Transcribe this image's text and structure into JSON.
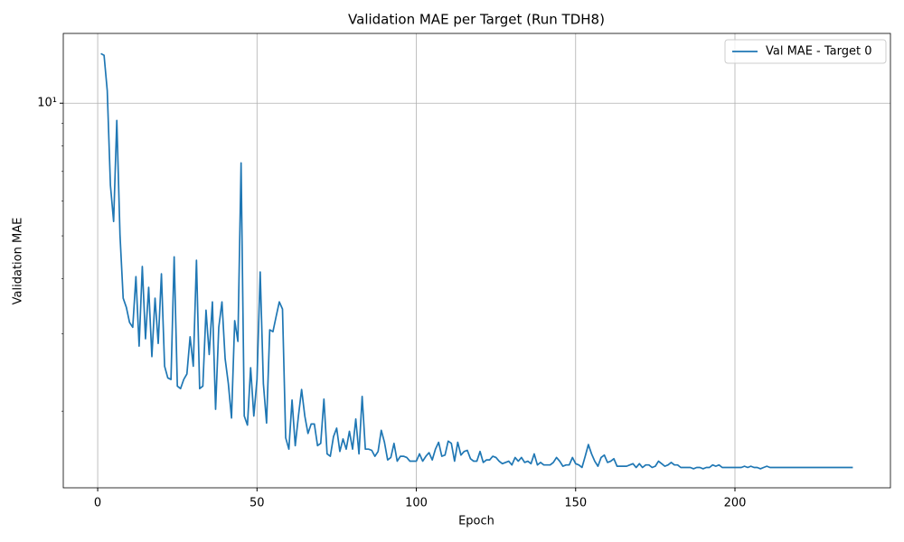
{
  "chart_data": {
    "type": "line",
    "title": "Validation MAE per Target (Run TDH8)",
    "x_label": "Epoch",
    "y_label": "Validation MAE",
    "x": [
      1,
      2,
      3,
      4,
      5,
      6,
      7,
      8,
      9,
      10,
      11,
      12,
      13,
      14,
      15,
      16,
      17,
      18,
      19,
      20,
      21,
      22,
      23,
      24,
      25,
      26,
      27,
      28,
      29,
      30,
      31,
      32,
      33,
      34,
      35,
      36,
      37,
      38,
      39,
      40,
      41,
      42,
      43,
      44,
      45,
      46,
      47,
      48,
      49,
      50,
      51,
      52,
      53,
      54,
      55,
      56,
      57,
      58,
      59,
      60,
      61,
      62,
      63,
      64,
      65,
      66,
      67,
      68,
      69,
      70,
      71,
      72,
      73,
      74,
      75,
      76,
      77,
      78,
      79,
      80,
      81,
      82,
      83,
      84,
      85,
      86,
      87,
      88,
      89,
      90,
      91,
      92,
      93,
      94,
      95,
      96,
      97,
      98,
      99,
      100,
      101,
      102,
      103,
      104,
      105,
      106,
      107,
      108,
      109,
      110,
      111,
      112,
      113,
      114,
      115,
      116,
      117,
      118,
      119,
      120,
      121,
      122,
      123,
      124,
      125,
      126,
      127,
      128,
      129,
      130,
      131,
      132,
      133,
      134,
      135,
      136,
      137,
      138,
      139,
      140,
      141,
      142,
      143,
      144,
      145,
      146,
      147,
      148,
      149,
      150,
      151,
      152,
      153,
      154,
      155,
      156,
      157,
      158,
      159,
      160,
      161,
      162,
      163,
      164,
      165,
      166,
      167,
      168,
      169,
      170,
      171,
      172,
      173,
      174,
      175,
      176,
      177,
      178,
      179,
      180,
      181,
      182,
      183,
      184,
      185,
      186,
      187,
      188,
      189,
      190,
      191,
      192,
      193,
      194,
      195,
      196,
      197,
      198,
      199,
      200,
      201,
      202,
      203,
      204,
      205,
      206,
      207,
      208,
      209,
      210,
      211,
      212,
      213,
      214,
      215,
      216,
      217,
      218,
      219,
      220,
      221,
      222,
      223,
      224,
      225,
      226,
      227,
      228,
      229,
      230,
      231,
      232,
      233,
      234,
      235,
      236,
      237
    ],
    "series": [
      {
        "name": "Val MAE - Target 0",
        "color": "#1f77b4",
        "values": [
          12.96,
          12.84,
          10.68,
          6.51,
          5.39,
          9.14,
          5.02,
          3.61,
          3.44,
          3.18,
          3.1,
          4.04,
          2.81,
          4.26,
          2.92,
          3.82,
          2.66,
          3.61,
          2.85,
          4.1,
          2.53,
          2.38,
          2.36,
          4.48,
          2.28,
          2.25,
          2.36,
          2.43,
          2.95,
          2.53,
          4.4,
          2.25,
          2.28,
          3.39,
          2.69,
          3.54,
          2.02,
          3.1,
          3.54,
          2.63,
          2.31,
          1.93,
          3.21,
          2.88,
          7.32,
          1.95,
          1.86,
          2.51,
          1.95,
          2.36,
          4.14,
          2.31,
          1.88,
          3.06,
          3.03,
          3.28,
          3.54,
          3.41,
          1.74,
          1.64,
          2.12,
          1.67,
          1.95,
          2.24,
          1.95,
          1.78,
          1.87,
          1.87,
          1.67,
          1.69,
          2.13,
          1.6,
          1.58,
          1.75,
          1.83,
          1.62,
          1.73,
          1.64,
          1.8,
          1.64,
          1.92,
          1.6,
          2.16,
          1.64,
          1.64,
          1.63,
          1.58,
          1.62,
          1.81,
          1.7,
          1.55,
          1.57,
          1.69,
          1.54,
          1.58,
          1.58,
          1.57,
          1.54,
          1.54,
          1.54,
          1.6,
          1.54,
          1.58,
          1.61,
          1.55,
          1.64,
          1.7,
          1.58,
          1.59,
          1.71,
          1.69,
          1.54,
          1.7,
          1.59,
          1.62,
          1.63,
          1.56,
          1.54,
          1.54,
          1.62,
          1.53,
          1.55,
          1.55,
          1.58,
          1.57,
          1.54,
          1.52,
          1.53,
          1.54,
          1.51,
          1.57,
          1.54,
          1.57,
          1.53,
          1.54,
          1.52,
          1.6,
          1.51,
          1.53,
          1.51,
          1.51,
          1.51,
          1.53,
          1.57,
          1.54,
          1.5,
          1.51,
          1.51,
          1.57,
          1.52,
          1.51,
          1.49,
          1.58,
          1.68,
          1.6,
          1.54,
          1.5,
          1.57,
          1.59,
          1.53,
          1.54,
          1.56,
          1.5,
          1.5,
          1.5,
          1.5,
          1.51,
          1.52,
          1.49,
          1.52,
          1.49,
          1.51,
          1.51,
          1.49,
          1.5,
          1.54,
          1.52,
          1.5,
          1.51,
          1.53,
          1.51,
          1.51,
          1.49,
          1.49,
          1.49,
          1.49,
          1.48,
          1.49,
          1.49,
          1.48,
          1.49,
          1.49,
          1.51,
          1.5,
          1.51,
          1.49,
          1.49,
          1.49,
          1.49,
          1.49,
          1.49,
          1.49,
          1.5,
          1.49,
          1.5,
          1.49,
          1.49,
          1.48,
          1.49,
          1.5,
          1.49,
          1.49,
          1.49,
          1.49,
          1.49,
          1.49,
          1.49,
          1.49,
          1.49,
          1.49,
          1.49,
          1.49,
          1.49,
          1.49,
          1.49,
          1.49,
          1.49,
          1.49,
          1.49,
          1.49,
          1.49,
          1.49,
          1.49,
          1.49,
          1.49,
          1.49,
          1.49
        ]
      }
    ],
    "xlim": [
      -10.8,
      248.8
    ],
    "xticks": [
      0,
      50,
      100,
      150,
      200
    ],
    "ylim": [
      1.34,
      14.4
    ],
    "log_y": true,
    "yticks": [
      {
        "value": 10,
        "label": "10¹"
      }
    ],
    "yminorticks": [
      2,
      3,
      4,
      5,
      6,
      7,
      8,
      9
    ],
    "grid": true,
    "legend": "upper right"
  }
}
